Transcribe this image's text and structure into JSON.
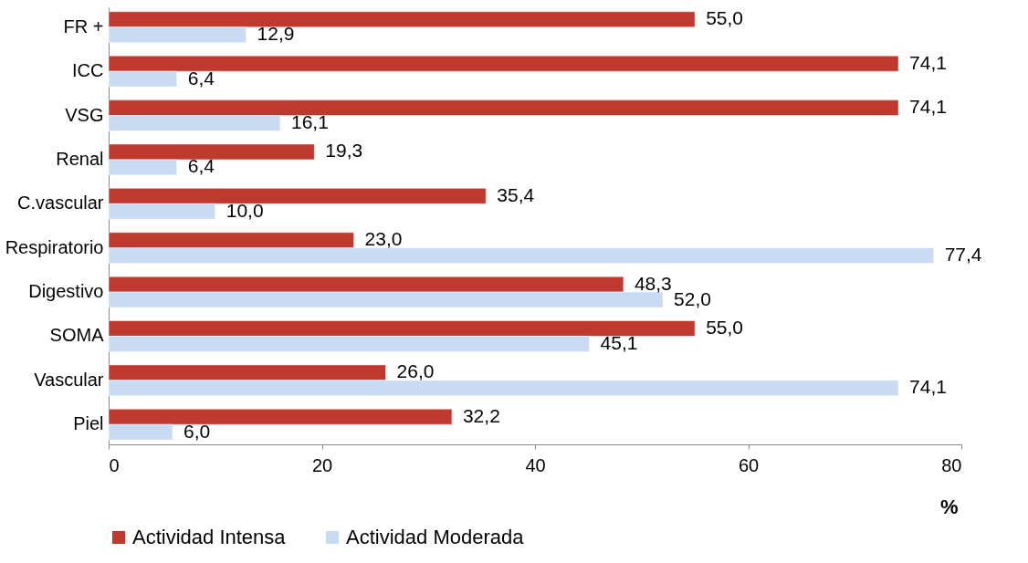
{
  "chart_data": {
    "type": "bar",
    "orientation": "horizontal",
    "xlabel": "%",
    "categories": [
      "FR +",
      "ICC",
      "VSG",
      "Renal",
      "C.vascular",
      "Respiratorio",
      "Digestivo",
      "SOMA",
      "Vascular",
      "Piel"
    ],
    "series": [
      {
        "name": "Actividad Intensa",
        "color": "#c0392f",
        "values": [
          55.0,
          74.1,
          74.1,
          19.3,
          35.4,
          23.0,
          48.3,
          55.0,
          26.0,
          32.2
        ],
        "value_labels": [
          "55,0",
          "74,1",
          "74,1",
          "19,3",
          "35,4",
          "23,0",
          "48,3",
          "55,0",
          "26,0",
          "32,2"
        ]
      },
      {
        "name": "Actividad Moderada",
        "color": "#c9dbf3",
        "values": [
          12.9,
          6.4,
          16.1,
          6.4,
          10.0,
          77.4,
          52.0,
          45.1,
          74.1,
          6.0
        ],
        "value_labels": [
          "12,9",
          "6,4",
          "16,1",
          "6,4",
          "10,0",
          "77,4",
          "52,0",
          "45,1",
          "74,1",
          "6,0"
        ]
      }
    ],
    "xlim": [
      0,
      80
    ],
    "xticks": [
      0,
      20,
      40,
      60,
      80
    ],
    "legend": "bottom",
    "grid": false
  }
}
